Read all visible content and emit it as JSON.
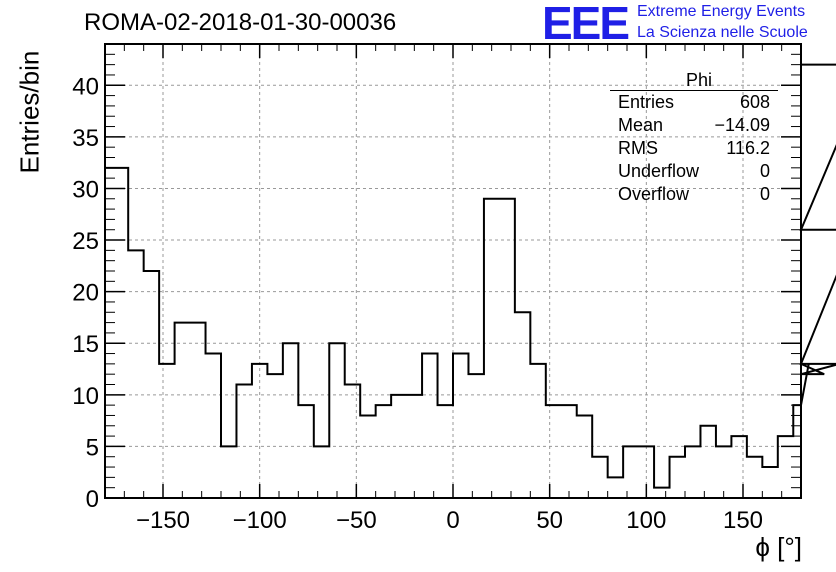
{
  "header": {
    "run_title": "ROMA-02-2018-01-30-00036",
    "logo_text": "EEE",
    "brand_line1": "Extreme Energy Events",
    "brand_line2": "La Scienza nelle Scuole"
  },
  "stats_box": {
    "name": "Phi",
    "rows": [
      {
        "label": "Entries",
        "value": "608"
      },
      {
        "label": "Mean",
        "value": "−14.09"
      },
      {
        "label": "RMS",
        "value": "116.2"
      },
      {
        "label": "Underflow",
        "value": "0"
      },
      {
        "label": "Overflow",
        "value": "0"
      }
    ]
  },
  "colors": {
    "brand": "#1f1fe6",
    "line": "#000000",
    "grid": "#999999"
  },
  "chart_data": {
    "type": "bar",
    "style": "step-histogram",
    "title": "ROMA-02-2018-01-30-00036",
    "xlabel": "ϕ [°]",
    "ylabel": "Entries/bin",
    "xlim": [
      -180,
      180
    ],
    "ylim": [
      0,
      44
    ],
    "grid": true,
    "bin_width": 8,
    "bin_edges_start": -176,
    "x_ticks": [
      -150,
      -100,
      -50,
      0,
      50,
      100,
      150
    ],
    "x_tick_labels": [
      "−150",
      "−100",
      "−50",
      "0",
      "50",
      "100",
      "150"
    ],
    "y_ticks": [
      0,
      5,
      10,
      15,
      20,
      25,
      30,
      35,
      40
    ],
    "y_tick_labels": [
      "0",
      "5",
      "10",
      "15",
      "20",
      "25",
      "30",
      "35",
      "40"
    ],
    "values": [
      32,
      24,
      22,
      13,
      17,
      17,
      14,
      5,
      11,
      13,
      12,
      15,
      9,
      5,
      15,
      11,
      8,
      9,
      10,
      10,
      14,
      9,
      14,
      12,
      29,
      29,
      18,
      13,
      9,
      9,
      8,
      4,
      2,
      5,
      5,
      1,
      4,
      5,
      7,
      5,
      6,
      4,
      3,
      6,
      9,
      13,
      12,
      13,
      26,
      42
    ]
  }
}
